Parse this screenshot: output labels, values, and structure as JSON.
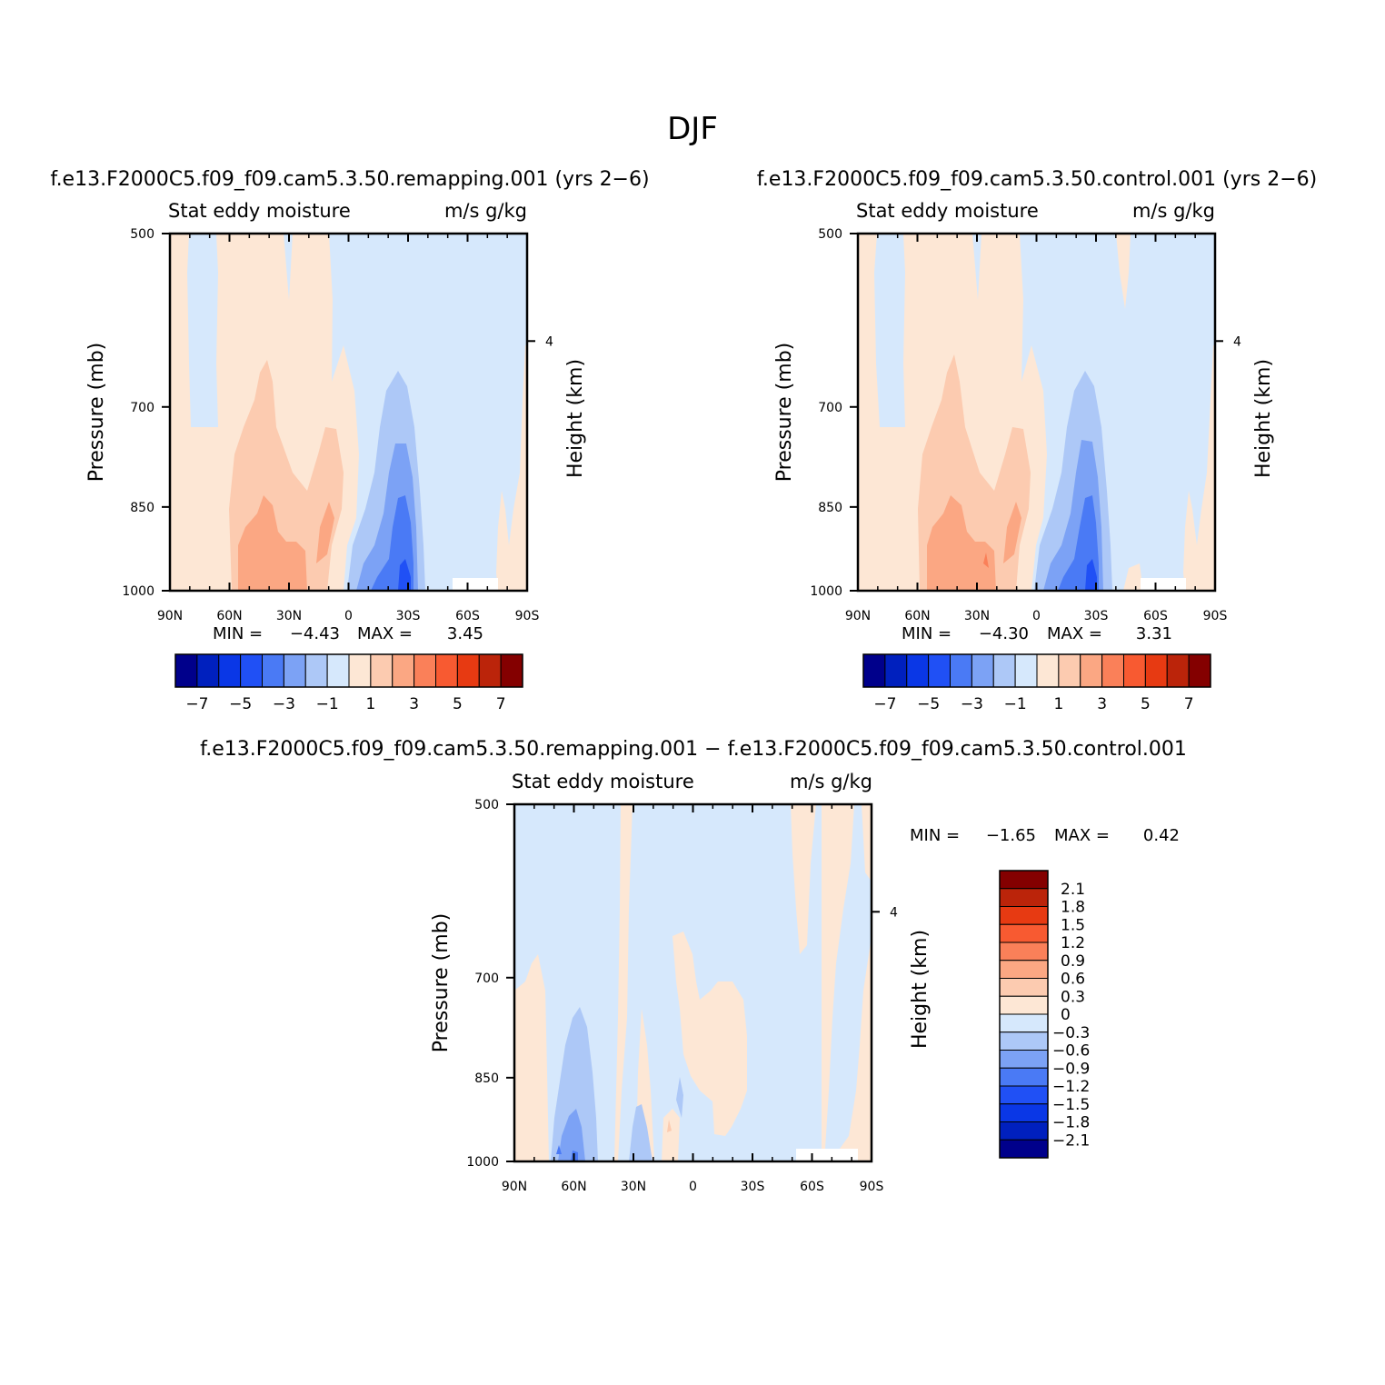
{
  "figure": {
    "title": "DJF"
  },
  "panels": [
    {
      "case_title": "f.e13.F2000C5.f09_f09.cam5.3.50.remapping.001 (yrs 2−6)",
      "left_label": "Stat eddy moisture",
      "right_label": "m/s g/kg",
      "min_label": "MIN =",
      "min_value": "−4.43",
      "max_label": "MAX =",
      "max_value": "3.45"
    },
    {
      "case_title": "f.e13.F2000C5.f09_f09.cam5.3.50.control.001 (yrs 2−6)",
      "left_label": "Stat eddy moisture",
      "right_label": "m/s g/kg",
      "min_label": "MIN =",
      "min_value": "−4.30",
      "max_label": "MAX =",
      "max_value": "3.31"
    },
    {
      "case_title": "f.e13.F2000C5.f09_f09.cam5.3.50.remapping.001 − f.e13.F2000C5.f09_f09.cam5.3.50.control.001",
      "left_label": "Stat eddy moisture",
      "right_label": "m/s g/kg",
      "min_label": "MIN =",
      "min_value": "−1.65",
      "max_label": "MAX =",
      "max_value": "0.42"
    }
  ],
  "colors": {
    "blues": [
      "#00008b",
      "#0020be",
      "#0a37e6",
      "#2050f5",
      "#4a7af5",
      "#7ca2f5",
      "#adc8f7",
      "#d6e8fc"
    ],
    "reds": [
      "#fde7d5",
      "#fccbb0",
      "#fba783",
      "#fa8059",
      "#f85a31",
      "#e73a12",
      "#bb240a",
      "#840000"
    ]
  },
  "chart_data": {
    "type": "contour",
    "x_axis": {
      "ticks": [
        "90N",
        "60N",
        "30N",
        "0",
        "30S",
        "60S",
        "90S"
      ],
      "range": [
        90,
        -90
      ]
    },
    "y_axis": {
      "label": "Pressure (mb)",
      "ticks": [
        500,
        700,
        850,
        1000
      ],
      "range": [
        500,
        1000
      ],
      "scale": "log"
    },
    "y2_axis": {
      "label": "Height (km)",
      "ticks": [
        4
      ]
    },
    "colorbar_main": {
      "labels": [
        "−7",
        "−5",
        "−3",
        "−1",
        "1",
        "3",
        "5",
        "7"
      ],
      "levels": [
        -7,
        -6,
        -5,
        -4,
        -3,
        -2,
        -1,
        0,
        1,
        2,
        3,
        4,
        5,
        6,
        7
      ]
    },
    "colorbar_diff": {
      "labels": [
        "2.1",
        "1.8",
        "1.5",
        "1.2",
        "0.9",
        "0.6",
        "0.3",
        "0",
        "−0.3",
        "−0.6",
        "−0.9",
        "−1.2",
        "−1.5",
        "−1.8",
        "−2.1"
      ]
    }
  }
}
